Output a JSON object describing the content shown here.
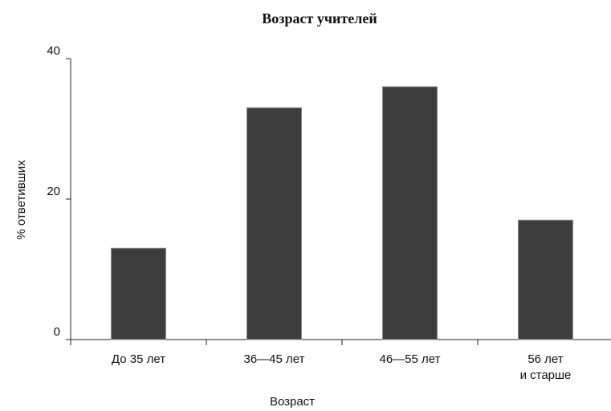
{
  "chart_data": {
    "type": "bar",
    "title": "Возраст учителей",
    "xlabel": "Возраст",
    "ylabel": "% ответивших",
    "categories": [
      "До 35 лет",
      "36—45 лет",
      "46—55 лет",
      "56 лет и старше"
    ],
    "category_lines": [
      [
        "До 35 лет"
      ],
      [
        "36—45 лет"
      ],
      [
        "46—55 лет"
      ],
      [
        "56 лет",
        "и старше"
      ]
    ],
    "values": [
      13,
      33,
      36,
      17
    ],
    "ylim": [
      0,
      40
    ],
    "yticks": [
      0,
      20,
      40
    ],
    "ytick_labels": [
      "0",
      "20",
      "40"
    ],
    "bar_color": "#3d3d3d",
    "grid": false,
    "legend": "none"
  }
}
